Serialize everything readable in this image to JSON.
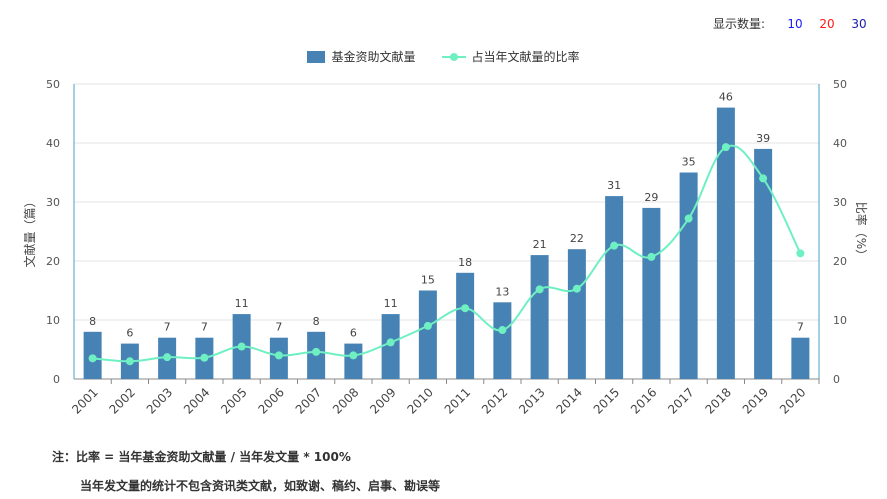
{
  "controls": {
    "label": "显示数量:",
    "options": [
      {
        "label": "10",
        "color": "#1a1aff"
      },
      {
        "label": "20",
        "color": "#ff1a1a"
      },
      {
        "label": "30",
        "color": "#1a1aaa"
      }
    ]
  },
  "chart_data": {
    "type": "bar",
    "categories": [
      "2001",
      "2002",
      "2003",
      "2004",
      "2005",
      "2006",
      "2007",
      "2008",
      "2009",
      "2010",
      "2011",
      "2012",
      "2013",
      "2014",
      "2015",
      "2016",
      "2017",
      "2018",
      "2019",
      "2020"
    ],
    "series": [
      {
        "name": "基金资助文献量",
        "type": "bar",
        "axis": "left",
        "color": "#4682b4",
        "values": [
          8,
          6,
          7,
          7,
          11,
          7,
          8,
          6,
          11,
          15,
          18,
          13,
          21,
          22,
          31,
          29,
          35,
          46,
          39,
          7
        ]
      },
      {
        "name": "占当年文献量的比率",
        "type": "line",
        "axis": "right",
        "color": "#6ff0c2",
        "values": [
          3.5,
          3.0,
          3.7,
          3.6,
          5.5,
          4.0,
          4.6,
          4.0,
          6.2,
          9.0,
          12.0,
          8.3,
          15.2,
          15.3,
          22.6,
          20.7,
          27.2,
          39.3,
          34.0,
          21.3
        ]
      }
    ],
    "ylabel": "文献量（篇）",
    "y2label": "比率（%）",
    "ylim": [
      0,
      50
    ],
    "y2lim": [
      0,
      50
    ],
    "yticks": [
      0,
      10,
      20,
      30,
      40,
      50
    ],
    "y2ticks": [
      0,
      10,
      20,
      30,
      40,
      50
    ],
    "grid": true,
    "legend": "top-center",
    "bar_data_labels": true
  },
  "notes": {
    "line1": "注：比率 = 当年基金资助文献量 / 当年发文量 * 100%",
    "line2": "当年发文量的统计不包含资讯类文献，如致谢、稿约、启事、勘误等"
  }
}
